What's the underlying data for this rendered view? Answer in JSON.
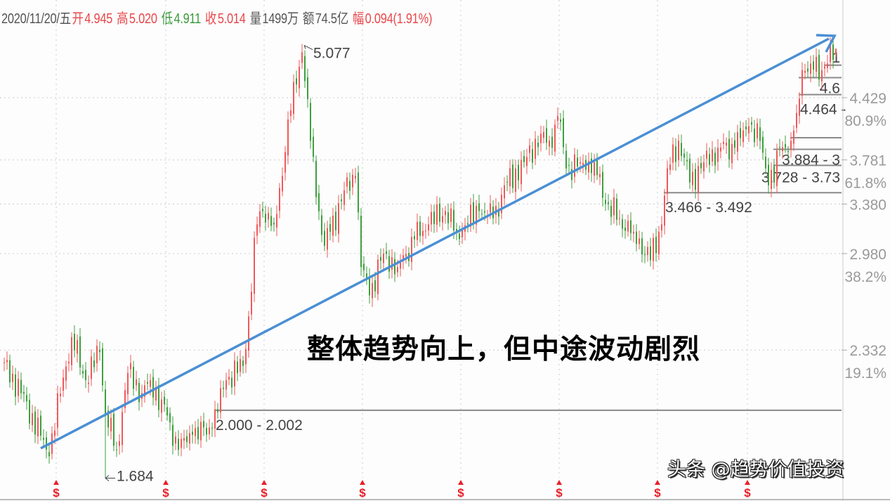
{
  "header": {
    "date": "2020/11/20/五",
    "open_label": "开",
    "open": "4.945",
    "high_label": "高",
    "high": "5.020",
    "low_label": "低",
    "low": "4.911",
    "close_label": "收",
    "close": "5.014",
    "volume_label": "量",
    "volume": "1499万",
    "amount_label": "额",
    "amount": "74.5亿",
    "change_label": "幅",
    "change": "0.094(1.91%)"
  },
  "headline": "整体趋势向上，但中途波动剧烈",
  "watermark": "头条 @趋势价值投资",
  "colors": {
    "up": "#f0595c",
    "down": "#3f9f3f",
    "trendline": "#4a8fd4",
    "level_line": "#8a8a8a",
    "axis_text": "#9a9a9a",
    "marker": "#e8202a"
  },
  "chart_data": {
    "type": "candlestick",
    "y_scale": "log",
    "grid": true,
    "y_ticks": [
      {
        "value": "4.429",
        "pct": "80.9%"
      },
      {
        "value": "3.781",
        "pct": "61.8%"
      },
      {
        "value": "3.380",
        "pct": ""
      },
      {
        "value": "2.980",
        "pct": "38.2%"
      },
      {
        "value": "2.332",
        "pct": "19.1%"
      }
    ],
    "price_path": [
      [
        0,
        2.26
      ],
      [
        6,
        2.09
      ],
      [
        16,
        1.78
      ],
      [
        24,
        2.41
      ],
      [
        29,
        2.16
      ],
      [
        34,
        2.32
      ],
      [
        36,
        1.98
      ],
      [
        40,
        1.81
      ],
      [
        44,
        2.2
      ],
      [
        49,
        2.09
      ],
      [
        52,
        2.16
      ],
      [
        59,
        1.94
      ],
      [
        62,
        1.81
      ],
      [
        67,
        1.88
      ],
      [
        74,
        1.91
      ],
      [
        79,
        2.16
      ],
      [
        85,
        2.24
      ],
      [
        87,
        2.54
      ],
      [
        90,
        3.21
      ],
      [
        92,
        3.32
      ],
      [
        96,
        3.21
      ],
      [
        99,
        3.63
      ],
      [
        101,
        4.19
      ],
      [
        104,
        4.58
      ],
      [
        106,
        4.97
      ],
      [
        109,
        3.97
      ],
      [
        111,
        3.44
      ],
      [
        114,
        3.04
      ],
      [
        116,
        3.15
      ],
      [
        121,
        3.5
      ],
      [
        125,
        3.63
      ],
      [
        127,
        2.88
      ],
      [
        130,
        2.68
      ],
      [
        135,
        2.98
      ],
      [
        140,
        2.88
      ],
      [
        146,
        3.09
      ],
      [
        151,
        3.21
      ],
      [
        157,
        3.32
      ],
      [
        161,
        3.15
      ],
      [
        169,
        3.32
      ],
      [
        174,
        3.26
      ],
      [
        179,
        3.57
      ],
      [
        185,
        3.76
      ],
      [
        191,
        4.04
      ],
      [
        195,
        3.9
      ],
      [
        197,
        4.23
      ],
      [
        200,
        3.7
      ],
      [
        205,
        3.76
      ],
      [
        210,
        3.76
      ],
      [
        214,
        3.38
      ],
      [
        219,
        3.26
      ],
      [
        224,
        3.15
      ],
      [
        230,
        2.93
      ],
      [
        234,
        3.21
      ],
      [
        236,
        3.7
      ],
      [
        240,
        3.97
      ],
      [
        244,
        3.57
      ],
      [
        249,
        3.76
      ],
      [
        254,
        3.9
      ],
      [
        260,
        3.9
      ],
      [
        265,
        4.12
      ],
      [
        269,
        3.97
      ],
      [
        271,
        3.7
      ],
      [
        274,
        3.57
      ],
      [
        276,
        3.9
      ],
      [
        280,
        3.97
      ],
      [
        282,
        4.26
      ],
      [
        284,
        4.75
      ],
      [
        287,
        4.83
      ],
      [
        291,
        4.75
      ],
      [
        296,
        5.014
      ]
    ],
    "last_candle": {
      "open": 4.945,
      "high": 5.02,
      "low": 4.911,
      "close": 5.014
    },
    "annotations": {
      "max": "5.077",
      "min": "1.684",
      "max_index": 106,
      "min_index": 36,
      "min_price": 1.684,
      "max_price": 5.077
    },
    "gap_levels": [
      {
        "label": "2.000 - 2.002",
        "price": 2.001,
        "start_index": 75
      },
      {
        "label": "3.466 - 3.492",
        "price": 3.479,
        "start_index": 235
      },
      {
        "label": "3.728 - 3.73",
        "price": 3.729,
        "start_index": 274
      },
      {
        "label": "3.884 - 3",
        "price": 3.884,
        "start_index": 274
      },
      {
        "label": "",
        "price": 4.0,
        "start_index": 280
      },
      {
        "label": "4.464 -",
        "price": 4.464,
        "start_index": 283
      },
      {
        "label": "4.6",
        "price": 4.66,
        "start_index": 283
      },
      {
        "label": "1",
        "price": 4.81,
        "start_index": 292
      }
    ],
    "marker_symbol": "$",
    "marker_indices": [
      18,
      57,
      92,
      127,
      162,
      197,
      232,
      264
    ]
  }
}
